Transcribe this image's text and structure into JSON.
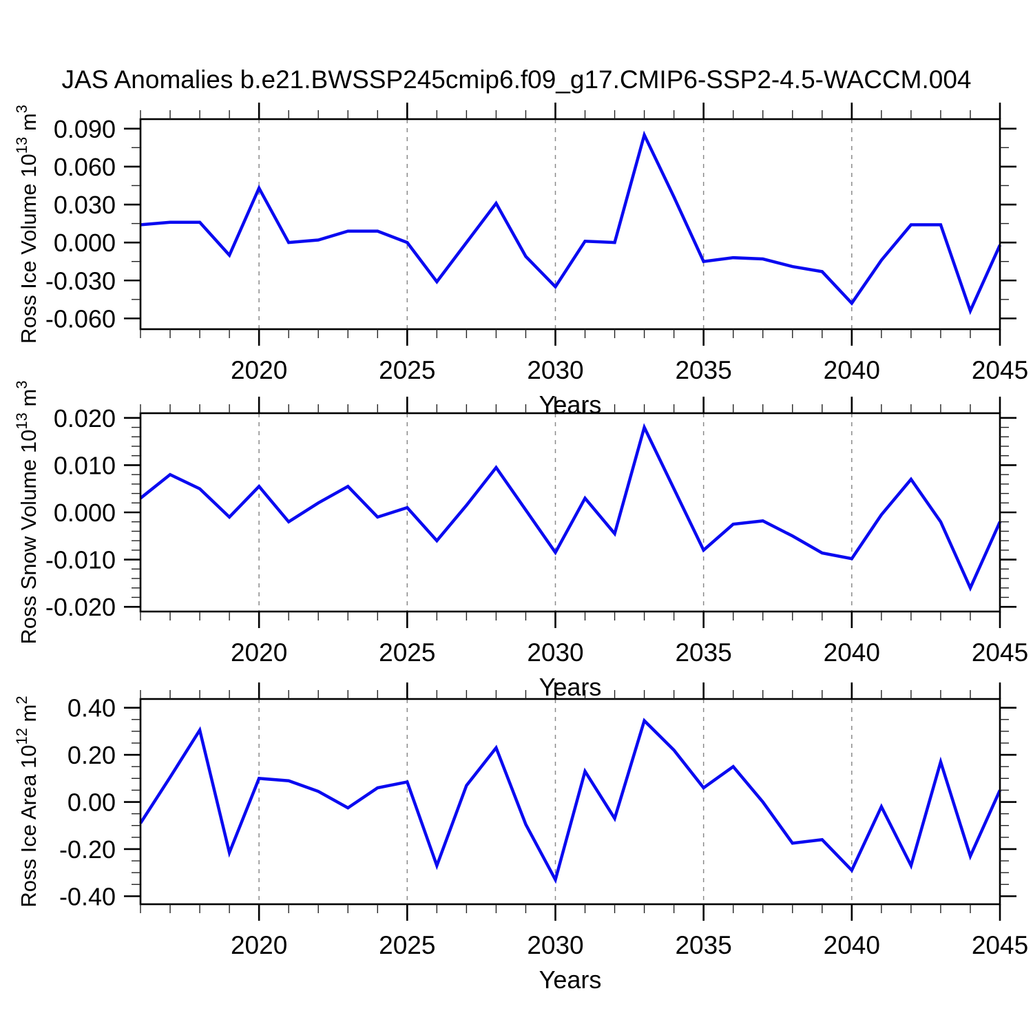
{
  "chart_data": {
    "type": "line",
    "title": "JAS Anomalies b.e21.BWSSP245cmip6.f09_g17.CMIP6-SSP2-4.5-WACCM.004",
    "xlabel": "Years",
    "xlim": [
      2016,
      2045
    ],
    "x": [
      2016,
      2017,
      2018,
      2019,
      2020,
      2021,
      2022,
      2023,
      2024,
      2025,
      2026,
      2027,
      2028,
      2029,
      2030,
      2031,
      2032,
      2033,
      2034,
      2035,
      2036,
      2037,
      2038,
      2039,
      2040,
      2041,
      2042,
      2043,
      2044,
      2045
    ],
    "x_major_ticks": [
      {
        "v": 2020,
        "label": "2020"
      },
      {
        "v": 2025,
        "label": "2025"
      },
      {
        "v": 2030,
        "label": "2030"
      },
      {
        "v": 2035,
        "label": "2035"
      },
      {
        "v": 2040,
        "label": "2040"
      },
      {
        "v": 2045,
        "label": "2045"
      }
    ],
    "x_gridline_years": [
      2020,
      2025,
      2030,
      2035,
      2040
    ],
    "grid": "vertical-dashed-gray",
    "legend": "none",
    "line_color": "#0A0AF0",
    "panels": [
      {
        "name": "ross-ice-volume",
        "ylabel_text": "Ross Ice Volume 10^13 m^3",
        "ylabel_parts": [
          {
            "text": "Ross Ice Volume 10"
          },
          {
            "text": "13",
            "sup": true
          },
          {
            "text": " m"
          },
          {
            "text": "3",
            "sup": true
          }
        ],
        "ylim": [
          -0.0685,
          0.0975
        ],
        "y_major_step": 0.03,
        "y_minor_step": 0.015,
        "y_major_ticks": [
          {
            "v": 0.09,
            "label": "0.090"
          },
          {
            "v": 0.06,
            "label": "0.060"
          },
          {
            "v": 0.03,
            "label": "0.030"
          },
          {
            "v": 0.0,
            "label": "0.000"
          },
          {
            "v": -0.03,
            "label": "-0.030"
          },
          {
            "v": -0.06,
            "label": "-0.060"
          }
        ],
        "values": [
          0.014,
          0.016,
          0.016,
          -0.01,
          0.043,
          0.0,
          0.002,
          0.009,
          0.009,
          0.0,
          -0.031,
          0.0,
          0.031,
          -0.011,
          -0.035,
          0.001,
          0.0,
          0.085,
          0.036,
          -0.015,
          -0.012,
          -0.013,
          -0.019,
          -0.023,
          -0.048,
          -0.014,
          0.014,
          0.014,
          -0.054,
          -0.002
        ]
      },
      {
        "name": "ross-snow-volume",
        "ylabel_text": "Ross Snow Volume 10^13 m^3",
        "ylabel_parts": [
          {
            "text": "Ross Snow Volume 10"
          },
          {
            "text": "13",
            "sup": true
          },
          {
            "text": " m"
          },
          {
            "text": "3",
            "sup": true
          }
        ],
        "ylim": [
          -0.021,
          0.021
        ],
        "y_major_step": 0.01,
        "y_minor_step": 0.002,
        "y_major_ticks": [
          {
            "v": 0.02,
            "label": "0.020"
          },
          {
            "v": 0.01,
            "label": "0.010"
          },
          {
            "v": 0.0,
            "label": "0.000"
          },
          {
            "v": -0.01,
            "label": "-0.010"
          },
          {
            "v": -0.02,
            "label": "-0.020"
          }
        ],
        "values": [
          0.003,
          0.008,
          0.005,
          -0.001,
          0.0055,
          -0.002,
          0.002,
          0.0055,
          -0.001,
          0.001,
          -0.006,
          0.0015,
          0.0095,
          0.0005,
          -0.0085,
          0.003,
          -0.0045,
          0.018,
          0.005,
          -0.008,
          -0.0025,
          -0.0018,
          -0.005,
          -0.0086,
          -0.0098,
          -0.0005,
          0.007,
          -0.002,
          -0.016,
          -0.002
        ]
      },
      {
        "name": "ross-ice-area",
        "ylabel_text": "Ross Ice Area 10^12 m^2",
        "ylabel_parts": [
          {
            "text": "Ross Ice Area 10"
          },
          {
            "text": "12",
            "sup": true
          },
          {
            "text": " m"
          },
          {
            "text": "2",
            "sup": true
          }
        ],
        "ylim": [
          -0.434,
          0.437
        ],
        "y_major_step": 0.2,
        "y_minor_step": 0.05,
        "y_major_ticks": [
          {
            "v": 0.4,
            "label": "0.40"
          },
          {
            "v": 0.2,
            "label": "0.20"
          },
          {
            "v": 0.0,
            "label": "0.00"
          },
          {
            "v": -0.2,
            "label": "-0.20"
          },
          {
            "v": -0.4,
            "label": "-0.40"
          }
        ],
        "values": [
          -0.09,
          0.105,
          0.305,
          -0.215,
          0.1,
          0.09,
          0.045,
          -0.025,
          0.06,
          0.085,
          -0.27,
          0.07,
          0.23,
          -0.095,
          -0.33,
          0.13,
          -0.07,
          0.345,
          0.22,
          0.06,
          0.15,
          0.0,
          -0.175,
          -0.16,
          -0.29,
          -0.02,
          -0.27,
          0.17,
          -0.23,
          0.05
        ]
      }
    ]
  }
}
